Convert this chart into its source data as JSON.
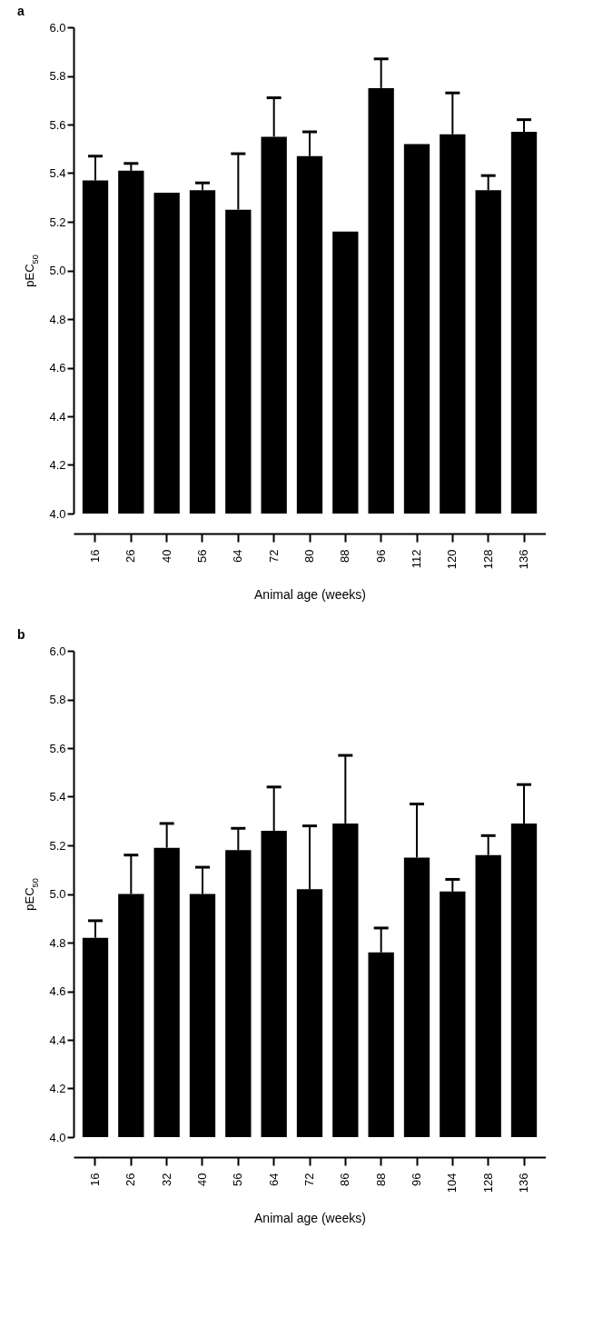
{
  "chart_data": [
    {
      "type": "bar",
      "title": "a",
      "xlabel": "Animal age (weeks)",
      "ylabel": "pEC$_{50}$",
      "categories": [
        "16",
        "26",
        "40",
        "56",
        "64",
        "72",
        "80",
        "88",
        "96",
        "112",
        "120",
        "128",
        "136"
      ],
      "series": [
        {
          "color": "#000000",
          "values": [
            5.37,
            5.41,
            5.32,
            5.33,
            5.25,
            5.55,
            5.47,
            5.16,
            5.75,
            5.52,
            5.56,
            5.33,
            5.57
          ],
          "errors": [
            [
              5.37,
              5.47
            ],
            [
              5.41,
              5.44
            ],
            null,
            [
              5.33,
              5.36
            ],
            [
              5.25,
              5.48
            ],
            [
              5.55,
              5.71
            ],
            [
              5.47,
              5.57
            ],
            null,
            [
              5.75,
              5.87
            ],
            null,
            [
              5.56,
              5.73
            ],
            [
              5.33,
              5.39
            ],
            [
              5.57,
              5.62
            ]
          ]
        }
      ],
      "ylim": [
        4.0,
        6.0
      ],
      "yticks": [
        {
          "value": 4,
          "label": "4.0"
        },
        4.2,
        4.4,
        4.6,
        4.8,
        {
          "value": 5,
          "label": "5.0"
        },
        5.2,
        5.4,
        5.6,
        5.8,
        {
          "value": 6,
          "label": "6.0"
        }
      ],
      "grid": false
    },
    {
      "type": "bar",
      "title": "b",
      "xlabel": "Animal age (weeks)",
      "ylabel": "pEC$_{50}$",
      "categories": [
        "16",
        "26",
        "32",
        "40",
        "56",
        "64",
        "72",
        "86",
        "88",
        "96",
        "104",
        "128",
        "136"
      ],
      "series": [
        {
          "color": "#000000",
          "values": [
            4.82,
            5.0,
            5.19,
            5.0,
            5.18,
            5.26,
            5.02,
            5.29,
            4.76,
            5.15,
            5.01,
            5.16,
            5.29
          ],
          "errors": [
            [
              4.82,
              4.89
            ],
            [
              5.0,
              5.16
            ],
            [
              5.19,
              5.29
            ],
            [
              5.0,
              5.11
            ],
            [
              5.18,
              5.27
            ],
            [
              5.26,
              5.44
            ],
            [
              5.02,
              5.28
            ],
            [
              5.29,
              5.57
            ],
            [
              4.76,
              4.86
            ],
            [
              5.15,
              5.37
            ],
            [
              5.01,
              5.06
            ],
            [
              5.16,
              5.24
            ],
            [
              5.29,
              5.45
            ]
          ]
        }
      ],
      "ylim": [
        4.0,
        6.0
      ],
      "yticks": [
        {
          "value": 4,
          "label": "4.0"
        },
        4.2,
        4.4,
        4.6,
        4.8,
        {
          "value": 5,
          "label": "5.0"
        },
        5.2,
        5.4,
        5.6,
        5.8,
        {
          "value": 6,
          "label": "6.0"
        }
      ],
      "grid": false
    }
  ]
}
